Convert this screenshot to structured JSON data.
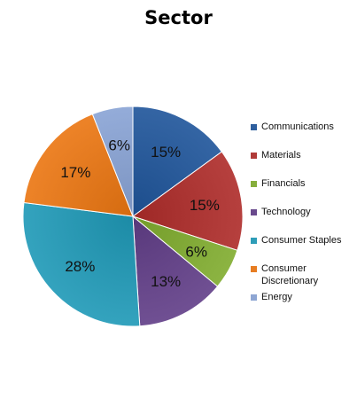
{
  "chart_data": {
    "type": "pie",
    "title": "Sector",
    "slices": [
      {
        "label": "Communications",
        "value": 15,
        "display": "15%",
        "color": "#2E5F9E"
      },
      {
        "label": "Materials",
        "value": 15,
        "display": "15%",
        "color": "#B03A38"
      },
      {
        "label": "Financials",
        "value": 6,
        "display": "6%",
        "color": "#86AE3C"
      },
      {
        "label": "Technology",
        "value": 13,
        "display": "13%",
        "color": "#6A4A8D"
      },
      {
        "label": "Consumer Staples",
        "value": 28,
        "display": "28%",
        "color": "#2E9DB8"
      },
      {
        "label": "Consumer Discretionary",
        "value": 17,
        "display": "17%",
        "color": "#E77D22"
      },
      {
        "label": "Energy",
        "value": 6,
        "display": "6%",
        "color": "#8EA6D3"
      }
    ],
    "start_angle": "12 o'clock",
    "direction": "clockwise",
    "legend_position": "right"
  }
}
